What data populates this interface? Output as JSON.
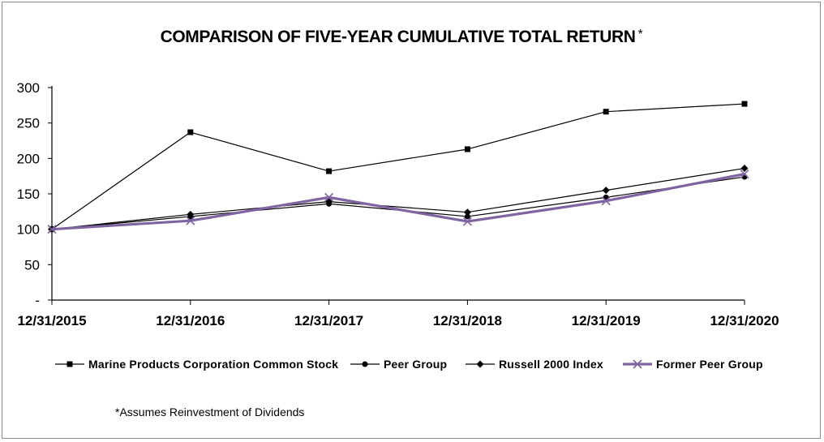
{
  "chart_data": {
    "type": "line",
    "title": "COMPARISON OF FIVE-YEAR CUMULATIVE TOTAL RETURN",
    "title_suffix": "*",
    "categories": [
      "12/31/2015",
      "12/31/2016",
      "12/31/2017",
      "12/31/2018",
      "12/31/2019",
      "12/31/2020"
    ],
    "ylim": [
      0,
      300
    ],
    "yticks": [
      0,
      50,
      100,
      150,
      200,
      250,
      300
    ],
    "ytick_labels": [
      "-",
      "50",
      "100",
      "150",
      "200",
      "250",
      "300"
    ],
    "grid": false,
    "legend_position": "bottom",
    "series": [
      {
        "name": "Marine Products Corporation Common Stock",
        "values": [
          100,
          237,
          182,
          213,
          266,
          277
        ],
        "color": "#000000",
        "marker": "square"
      },
      {
        "name": "Peer Group",
        "values": [
          100,
          118,
          136,
          118,
          145,
          174
        ],
        "color": "#000000",
        "marker": "circle"
      },
      {
        "name": "Russell 2000 Index",
        "values": [
          100,
          121,
          139,
          124,
          155,
          186
        ],
        "color": "#000000",
        "marker": "diamond"
      },
      {
        "name": "Former Peer Group",
        "values": [
          100,
          112,
          145,
          111,
          140,
          178
        ],
        "color": "#8064a2",
        "marker": "x"
      }
    ],
    "footnote": "*Assumes Reinvestment of Dividends"
  }
}
